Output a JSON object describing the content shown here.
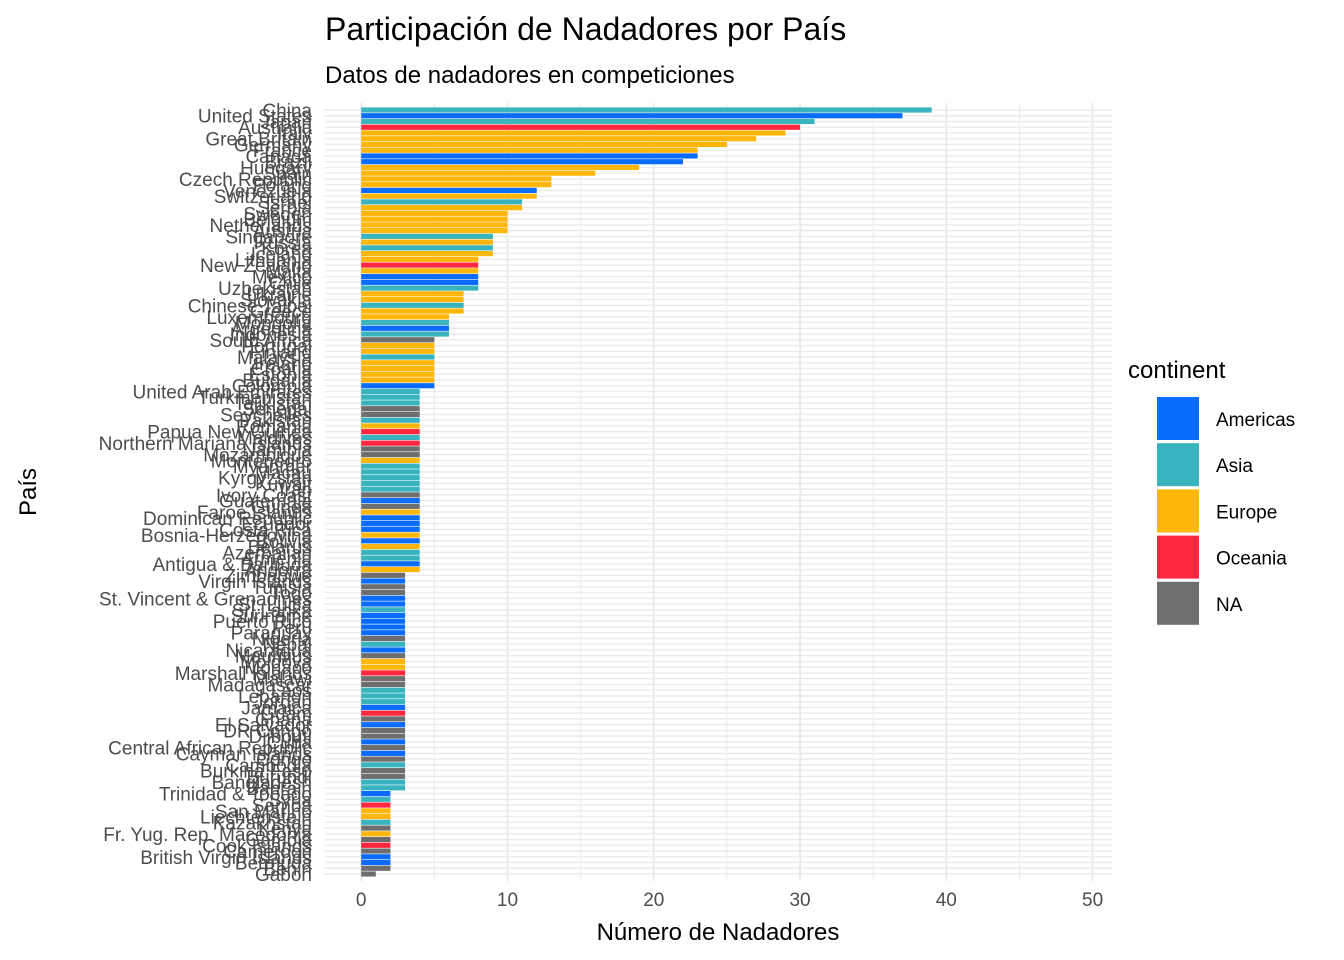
{
  "chart_data": {
    "type": "bar",
    "orientation": "horizontal",
    "title": "Participación de Nadadores por País",
    "subtitle": "Datos de nadadores en competiciones",
    "xlabel": "Número de Nadadores",
    "ylabel": "País",
    "xlim": [
      0,
      51
    ],
    "x_ticks": [
      0,
      10,
      20,
      30,
      40,
      50
    ],
    "grid": true,
    "legend": {
      "title": "continent",
      "placement": "right",
      "entries": [
        {
          "name": "Americas",
          "color": "#0A6BFF"
        },
        {
          "name": "Asia",
          "color": "#39B4BF"
        },
        {
          "name": "Europe",
          "color": "#FFB60A"
        },
        {
          "name": "Oceania",
          "color": "#FF2640"
        },
        {
          "name": "NA",
          "color": "#6E6E6E"
        }
      ]
    },
    "categories": [
      "China",
      "United States",
      "Japan",
      "Australia",
      "Italy",
      "Great Britain",
      "Germany",
      "France",
      "Canada",
      "Brazil",
      "Hungary",
      "Spain",
      "Czech Republic",
      "Poland",
      "Venezuela",
      "Switzerland",
      "Israel",
      "Serbia",
      "Sweden",
      "Belgium",
      "Netherlands",
      "Austria",
      "Singapore",
      "Russia",
      "Korea",
      "Iceland",
      "Lithuania",
      "New Zealand",
      "Malta",
      "Mexico",
      "Chile",
      "Uzbekistan",
      "Ukraine",
      "Slovakia",
      "Chinese Taipei",
      "Greece",
      "Luxembourg",
      "Mongolia",
      "Argentina",
      "Indonesia",
      "South Africa",
      "Portugal",
      "Finland",
      "Malaysia",
      "Ireland",
      "Croatia",
      "Estonia",
      "Bulgaria",
      "Colombia",
      "United Arab Emirates",
      "Turkmenistan",
      "Tajikistan",
      "Senegal",
      "Seychelles",
      "Pakistan",
      "Romania",
      "Papua New Guinea",
      "Maldives",
      "Northern Mariana Islands",
      "Namibia",
      "Mozambique",
      "Montenegro",
      "Myanmar",
      "Macau",
      "Kyrgyzstan",
      "Kuwait",
      "Iran",
      "Ivory Coast",
      "Guatemala",
      "Guinea",
      "Faroe Islands",
      "Dominican Republic",
      "Ecuador",
      "Costa Rica",
      "Bosnia-Herzegovina",
      "Bolivia",
      "Belarus",
      "Azerbaijan",
      "Armenia",
      "Antigua & Barbuda",
      "Andorra",
      "Zimbabwe",
      "Virgin Islands",
      "Tunisia",
      "Togo",
      "St. Vincent & Grenadines",
      "St. Lucia",
      "Sri Lanka",
      "Suriname",
      "Puerto Rico",
      "Peru",
      "Paraguay",
      "Nigeria",
      "Nepal",
      "Nicaragua",
      "Mauritius",
      "Moldova",
      "Monaco",
      "Marshall Islands",
      "Malawi",
      "Madagascar",
      "Laos",
      "Lebanon",
      "Jordan",
      "Jamaica",
      "Guam",
      "Ghana",
      "El Salvador",
      "DR Congo",
      "Djibouti",
      "Cuba",
      "Central African Republic",
      "Cayman Islands",
      "Congo",
      "Cambodia",
      "Burkina Faso",
      "Burundi",
      "Bangladesh",
      "Bahrain",
      "Trinidad & Tobago",
      "Syria",
      "Samoa",
      "San Marino",
      "Liechtenstein",
      "Kazakhstan",
      "Kenya",
      "Fr. Yug. Rep. Macedonia",
      "Gambia",
      "Cook Islands",
      "Cameroon",
      "British Virgin Islands",
      "Bermuda",
      "Benin",
      "Gabon"
    ],
    "values": [
      39,
      37,
      31,
      30,
      29,
      27,
      25,
      23,
      23,
      22,
      19,
      16,
      13,
      13,
      12,
      12,
      11,
      11,
      10,
      10,
      10,
      10,
      9,
      9,
      9,
      9,
      8,
      8,
      8,
      8,
      8,
      8,
      7,
      7,
      7,
      7,
      6,
      6,
      6,
      6,
      5,
      5,
      5,
      5,
      5,
      5,
      5,
      5,
      5,
      4,
      4,
      4,
      4,
      4,
      4,
      4,
      4,
      4,
      4,
      4,
      4,
      4,
      4,
      4,
      4,
      4,
      4,
      4,
      4,
      4,
      4,
      4,
      4,
      4,
      4,
      4,
      4,
      4,
      4,
      4,
      4,
      3,
      3,
      3,
      3,
      3,
      3,
      3,
      3,
      3,
      3,
      3,
      3,
      3,
      3,
      3,
      3,
      3,
      3,
      3,
      3,
      3,
      3,
      3,
      3,
      3,
      3,
      3,
      3,
      3,
      3,
      3,
      3,
      3,
      3,
      3,
      3,
      3,
      3,
      2,
      2,
      2,
      2,
      2,
      2,
      2,
      2,
      2,
      2,
      2,
      2,
      2,
      2,
      1
    ],
    "groups": [
      "Asia",
      "Americas",
      "Asia",
      "Oceania",
      "Europe",
      "Europe",
      "Europe",
      "Europe",
      "Americas",
      "Americas",
      "Europe",
      "Europe",
      "Europe",
      "Europe",
      "Americas",
      "Europe",
      "Asia",
      "Europe",
      "Europe",
      "Europe",
      "Europe",
      "Europe",
      "Asia",
      "Europe",
      "Asia",
      "Europe",
      "Europe",
      "Oceania",
      "Europe",
      "Americas",
      "Americas",
      "Asia",
      "Europe",
      "Europe",
      "Asia",
      "Europe",
      "Europe",
      "Asia",
      "Americas",
      "Asia",
      "NA",
      "Europe",
      "Europe",
      "Asia",
      "Europe",
      "Europe",
      "Europe",
      "Europe",
      "Americas",
      "Asia",
      "Asia",
      "Asia",
      "NA",
      "NA",
      "Asia",
      "Europe",
      "Oceania",
      "Asia",
      "Oceania",
      "NA",
      "NA",
      "Europe",
      "Asia",
      "Asia",
      "Asia",
      "Asia",
      "Asia",
      "NA",
      "Americas",
      "NA",
      "Europe",
      "Americas",
      "Americas",
      "Americas",
      "Europe",
      "Americas",
      "Europe",
      "Asia",
      "Asia",
      "Americas",
      "Europe",
      "NA",
      "Americas",
      "NA",
      "NA",
      "Americas",
      "Americas",
      "Asia",
      "Americas",
      "Americas",
      "Americas",
      "Americas",
      "NA",
      "Asia",
      "Americas",
      "NA",
      "Europe",
      "Europe",
      "Oceania",
      "NA",
      "NA",
      "Asia",
      "Asia",
      "Asia",
      "Americas",
      "Oceania",
      "NA",
      "Americas",
      "NA",
      "NA",
      "Americas",
      "NA",
      "Americas",
      "NA",
      "Asia",
      "NA",
      "NA",
      "Asia",
      "Asia",
      "Americas",
      "Asia",
      "Oceania",
      "Europe",
      "Europe",
      "Asia",
      "NA",
      "Europe",
      "NA",
      "Oceania",
      "NA",
      "Americas",
      "Americas",
      "NA",
      "NA"
    ]
  }
}
